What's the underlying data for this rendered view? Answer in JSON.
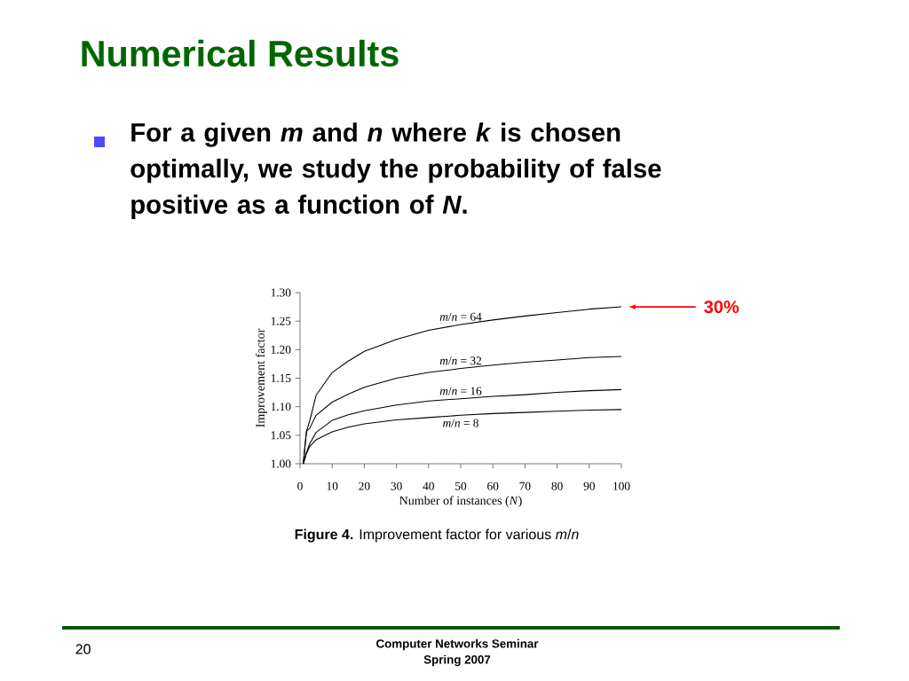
{
  "chart_data": {
    "type": "line",
    "title": "Numerical Results",
    "subtitle": "For a given *m* and *n* where *k* is chosen optimally, we study the probability of false positive as a function of *N*.",
    "xlabel": "Number of instances (*N*)",
    "ylabel": "Improvement factor",
    "x": [
      1,
      2,
      3,
      5,
      10,
      15,
      20,
      30,
      40,
      50,
      60,
      70,
      80,
      90,
      100
    ],
    "series": [
      {
        "name": "*m*/*n* = 64",
        "color": "#000000",
        "values": [
          1.0,
          1.057,
          1.075,
          1.12,
          1.16,
          1.18,
          1.197,
          1.218,
          1.234,
          1.244,
          1.252,
          1.259,
          1.265,
          1.271,
          1.275
        ]
      },
      {
        "name": "*m*/*n* = 32",
        "color": "#000000",
        "values": [
          1.0,
          1.057,
          1.062,
          1.085,
          1.108,
          1.122,
          1.134,
          1.15,
          1.16,
          1.167,
          1.173,
          1.178,
          1.182,
          1.186,
          1.188
        ]
      },
      {
        "name": "*m*/*n* = 16",
        "color": "#000000",
        "values": [
          1.0,
          1.02,
          1.035,
          1.055,
          1.076,
          1.086,
          1.093,
          1.103,
          1.11,
          1.114,
          1.118,
          1.121,
          1.125,
          1.128,
          1.13
        ]
      },
      {
        "name": "*m*/*n* = 8",
        "color": "#000000",
        "values": [
          1.0,
          1.018,
          1.03,
          1.042,
          1.056,
          1.064,
          1.07,
          1.077,
          1.081,
          1.085,
          1.088,
          1.09,
          1.092,
          1.094,
          1.095
        ]
      }
    ],
    "xlim": [
      0,
      100
    ],
    "ylim": [
      1.0,
      1.3
    ],
    "xticks": [
      0,
      10,
      20,
      30,
      40,
      50,
      60,
      70,
      80,
      90,
      100
    ],
    "yticks": [
      {
        "value": 1.0,
        "label": "1.00"
      },
      {
        "value": 1.05,
        "label": "1.05"
      },
      {
        "value": 1.1,
        "label": "1.10"
      },
      {
        "value": 1.15,
        "label": "1.15"
      },
      {
        "value": 1.2,
        "label": "1.20"
      },
      {
        "value": 1.25,
        "label": "1.25"
      },
      {
        "value": 1.3,
        "label": "1.30"
      }
    ],
    "grid": false,
    "marker": "none",
    "line_style": "solid",
    "annotations": [
      "30%",
      "**Figure 4.** Improvement factor for various *m*/*n*",
      "20",
      "Computer Networks Seminar",
      "Spring 2007"
    ]
  }
}
